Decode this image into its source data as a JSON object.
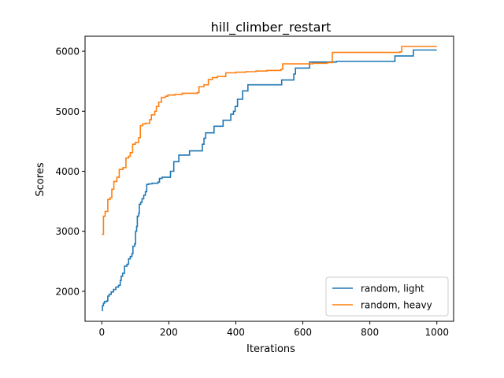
{
  "chart_data": {
    "type": "line",
    "title": "hill_climber_restart",
    "xlabel": "Iterations",
    "ylabel": "Scores",
    "xlim": [
      -50,
      1050
    ],
    "ylim": [
      1500,
      6250
    ],
    "xticks": [
      0,
      200,
      400,
      600,
      800,
      1000
    ],
    "yticks": [
      2000,
      3000,
      4000,
      5000,
      6000
    ],
    "grid": false,
    "legend_position": "lower-right",
    "series": [
      {
        "name": "random, light",
        "color": "#1f77b4",
        "points": [
          [
            0,
            1680
          ],
          [
            2,
            1760
          ],
          [
            5,
            1800
          ],
          [
            8,
            1830
          ],
          [
            15,
            1840
          ],
          [
            18,
            1920
          ],
          [
            22,
            1950
          ],
          [
            28,
            1990
          ],
          [
            35,
            2030
          ],
          [
            42,
            2070
          ],
          [
            50,
            2100
          ],
          [
            55,
            2180
          ],
          [
            58,
            2250
          ],
          [
            62,
            2300
          ],
          [
            68,
            2420
          ],
          [
            75,
            2450
          ],
          [
            80,
            2540
          ],
          [
            85,
            2580
          ],
          [
            90,
            2630
          ],
          [
            93,
            2750
          ],
          [
            98,
            2790
          ],
          [
            101,
            3000
          ],
          [
            104,
            3080
          ],
          [
            106,
            3250
          ],
          [
            110,
            3300
          ],
          [
            112,
            3450
          ],
          [
            116,
            3480
          ],
          [
            120,
            3540
          ],
          [
            125,
            3600
          ],
          [
            130,
            3660
          ],
          [
            134,
            3780
          ],
          [
            140,
            3790
          ],
          [
            150,
            3800
          ],
          [
            168,
            3820
          ],
          [
            172,
            3880
          ],
          [
            180,
            3900
          ],
          [
            205,
            4000
          ],
          [
            215,
            4160
          ],
          [
            230,
            4270
          ],
          [
            262,
            4340
          ],
          [
            295,
            4340
          ],
          [
            300,
            4450
          ],
          [
            305,
            4550
          ],
          [
            310,
            4640
          ],
          [
            335,
            4750
          ],
          [
            362,
            4850
          ],
          [
            385,
            4950
          ],
          [
            393,
            5000
          ],
          [
            398,
            5080
          ],
          [
            405,
            5200
          ],
          [
            420,
            5340
          ],
          [
            436,
            5440
          ],
          [
            470,
            5440
          ],
          [
            503,
            5440
          ],
          [
            537,
            5520
          ],
          [
            573,
            5620
          ],
          [
            578,
            5720
          ],
          [
            620,
            5820
          ],
          [
            680,
            5820
          ],
          [
            700,
            5830
          ],
          [
            875,
            5920
          ],
          [
            930,
            6020
          ],
          [
            1000,
            6020
          ]
        ]
      },
      {
        "name": "random, heavy",
        "color": "#ff7f0e",
        "points": [
          [
            0,
            2950
          ],
          [
            5,
            3250
          ],
          [
            10,
            3330
          ],
          [
            18,
            3530
          ],
          [
            25,
            3560
          ],
          [
            30,
            3700
          ],
          [
            36,
            3830
          ],
          [
            45,
            3900
          ],
          [
            52,
            4030
          ],
          [
            63,
            4060
          ],
          [
            72,
            4220
          ],
          [
            80,
            4250
          ],
          [
            85,
            4310
          ],
          [
            92,
            4450
          ],
          [
            100,
            4480
          ],
          [
            110,
            4560
          ],
          [
            115,
            4760
          ],
          [
            122,
            4790
          ],
          [
            130,
            4800
          ],
          [
            143,
            4860
          ],
          [
            148,
            4940
          ],
          [
            158,
            5000
          ],
          [
            163,
            5080
          ],
          [
            170,
            5150
          ],
          [
            178,
            5230
          ],
          [
            190,
            5250
          ],
          [
            197,
            5270
          ],
          [
            205,
            5270
          ],
          [
            218,
            5280
          ],
          [
            240,
            5300
          ],
          [
            285,
            5310
          ],
          [
            290,
            5410
          ],
          [
            305,
            5440
          ],
          [
            318,
            5530
          ],
          [
            330,
            5560
          ],
          [
            345,
            5580
          ],
          [
            370,
            5640
          ],
          [
            400,
            5650
          ],
          [
            430,
            5660
          ],
          [
            460,
            5670
          ],
          [
            493,
            5680
          ],
          [
            535,
            5700
          ],
          [
            540,
            5790
          ],
          [
            625,
            5790
          ],
          [
            630,
            5800
          ],
          [
            673,
            5810
          ],
          [
            688,
            5980
          ],
          [
            730,
            5980
          ],
          [
            890,
            5990
          ],
          [
            895,
            6080
          ],
          [
            1000,
            6080
          ]
        ]
      }
    ]
  }
}
